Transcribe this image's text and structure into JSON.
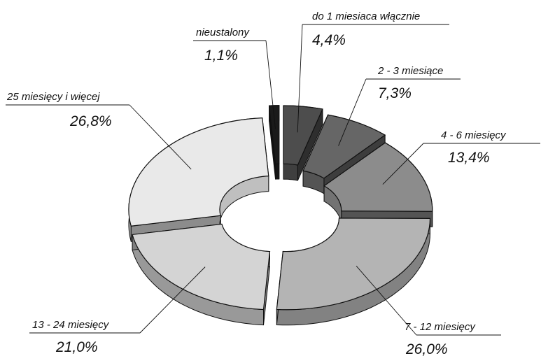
{
  "chart_data": {
    "type": "pie",
    "style": "exploded-3d-donut",
    "legend": "none",
    "slices": [
      {
        "label": "do  1 miesiaca włącznie",
        "value": 4.4,
        "value_label": "4,4%",
        "color": "#4d4d4d"
      },
      {
        "label": "2 - 3 miesiące",
        "value": 7.3,
        "value_label": "7,3%",
        "color": "#666666"
      },
      {
        "label": "4 - 6 miesięcy",
        "value": 13.4,
        "value_label": "13,4%",
        "color": "#8c8c8c"
      },
      {
        "label": "7 - 12 miesięcy",
        "value": 26.0,
        "value_label": "26,0%",
        "color": "#b4b4b4"
      },
      {
        "label": "13 - 24 miesięcy",
        "value": 21.0,
        "value_label": "21,0%",
        "color": "#d4d4d4"
      },
      {
        "label": "25 miesięcy i więcej",
        "value": 26.8,
        "value_label": "26,8%",
        "color": "#e9e9e9"
      },
      {
        "label": "nieustalony",
        "value": 1.1,
        "value_label": "1,1%",
        "color": "#1a1a1a"
      }
    ]
  }
}
